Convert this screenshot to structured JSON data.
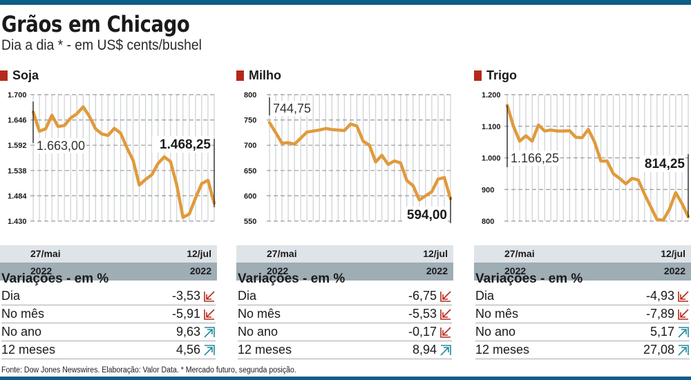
{
  "header": {
    "title": "Grãos em Chicago",
    "subtitle": "Dia a dia * - em US$ cents/bushel"
  },
  "colors": {
    "top_bar": "#0e5d87",
    "marker": "#b5281c",
    "line": "#e09a3c",
    "date_band": "#dfe4e8",
    "year_band": "#9fadb5",
    "arrow_down": "#b5281c",
    "arrow_up": "#1f8a9c"
  },
  "panels": [
    {
      "name": "Soja",
      "start_date": "27/mai",
      "end_date": "12/jul",
      "start_year": "2022",
      "end_year": "2022",
      "start_label": "1.663,00",
      "end_label": "1.468,25",
      "variations_title": "Variações - em %",
      "variations": [
        {
          "label": "Dia",
          "value": "-3,53",
          "direction": "down"
        },
        {
          "label": "No mês",
          "value": "-5,91",
          "direction": "down"
        },
        {
          "label": "No ano",
          "value": "9,63",
          "direction": "up"
        },
        {
          "label": "12 meses",
          "value": "4,56",
          "direction": "up"
        }
      ]
    },
    {
      "name": "Milho",
      "start_date": "27/mai",
      "end_date": "12/jul",
      "start_year": "2022",
      "end_year": "2022",
      "start_label": "744,75",
      "end_label": "594,00",
      "variations_title": "Variações - em %",
      "variations": [
        {
          "label": "Dia",
          "value": "-6,75",
          "direction": "down"
        },
        {
          "label": "No mês",
          "value": "-5,53",
          "direction": "down"
        },
        {
          "label": "No ano",
          "value": "-0,17",
          "direction": "down"
        },
        {
          "label": "12 meses",
          "value": "8,94",
          "direction": "up"
        }
      ]
    },
    {
      "name": "Trigo",
      "start_date": "27/mai",
      "end_date": "12/jul",
      "start_year": "2022",
      "end_year": "2022",
      "start_label": "1.166,25",
      "end_label": "814,25",
      "variations_title": "Variações - em %",
      "variations": [
        {
          "label": "Dia",
          "value": "-4,93",
          "direction": "down"
        },
        {
          "label": "No mês",
          "value": "-7,89",
          "direction": "down"
        },
        {
          "label": "No ano",
          "value": "5,17",
          "direction": "up"
        },
        {
          "label": "12 meses",
          "value": "27,08",
          "direction": "up"
        }
      ]
    }
  ],
  "footer": {
    "source": "Fonte: Dow Jones Newswires. Elaboração: Valor Data. * Mercado futuro,  segunda posição."
  },
  "chart_data": [
    {
      "type": "line",
      "title": "Soja",
      "xlabel": "",
      "ylabel": "US$ cents/bushel",
      "x_start": "27/mai/2022",
      "x_end": "12/jul/2022",
      "yticks": [
        1430,
        1484,
        1538,
        1592,
        1646,
        1700
      ],
      "ytick_labels": [
        "1.430",
        "1.484",
        "1.538",
        "1.592",
        "1.646",
        "1.700"
      ],
      "ylim": [
        1430,
        1700
      ],
      "grid": true,
      "values": [
        1663.0,
        1622,
        1627,
        1656,
        1632,
        1634,
        1650,
        1659,
        1674,
        1654,
        1627,
        1616,
        1613,
        1628,
        1618,
        1587,
        1560,
        1507,
        1519,
        1529,
        1553,
        1567,
        1557,
        1507,
        1438,
        1445,
        1479,
        1510,
        1517,
        1468.25
      ],
      "annotations": [
        {
          "text": "1.663,00",
          "at": "start"
        },
        {
          "text": "1.468,25",
          "at": "end"
        }
      ]
    },
    {
      "type": "line",
      "title": "Milho",
      "xlabel": "",
      "ylabel": "US$ cents/bushel",
      "x_start": "27/mai/2022",
      "x_end": "12/jul/2022",
      "yticks": [
        550,
        600,
        650,
        700,
        750,
        800
      ],
      "ytick_labels": [
        "550",
        "600",
        "650",
        "700",
        "750",
        "800"
      ],
      "ylim": [
        550,
        800
      ],
      "grid": true,
      "values": [
        744.75,
        725,
        704,
        705,
        702,
        714,
        726,
        728,
        730,
        733,
        731,
        730,
        729,
        742,
        738,
        708,
        700,
        667,
        680,
        662,
        669,
        665,
        630,
        620,
        592,
        600,
        608,
        633,
        636,
        594.0
      ],
      "annotations": [
        {
          "text": "744,75",
          "at": "start"
        },
        {
          "text": "594,00",
          "at": "end"
        }
      ]
    },
    {
      "type": "line",
      "title": "Trigo",
      "xlabel": "",
      "ylabel": "US$ cents/bushel",
      "x_start": "27/mai/2022",
      "x_end": "12/jul/2022",
      "yticks": [
        800,
        900,
        1000,
        1100,
        1200
      ],
      "ytick_labels": [
        "800",
        "900",
        "1.000",
        "1.100",
        "1.200"
      ],
      "ylim": [
        800,
        1200
      ],
      "grid": true,
      "values": [
        1166.25,
        1100,
        1053,
        1070,
        1053,
        1104,
        1085,
        1088,
        1085,
        1085,
        1086,
        1065,
        1064,
        1090,
        1050,
        990,
        990,
        950,
        935,
        918,
        935,
        930,
        885,
        845,
        805,
        803,
        838,
        890,
        855,
        814.25
      ],
      "annotations": [
        {
          "text": "1.166,25",
          "at": "start"
        },
        {
          "text": "814,25",
          "at": "end"
        }
      ]
    }
  ]
}
